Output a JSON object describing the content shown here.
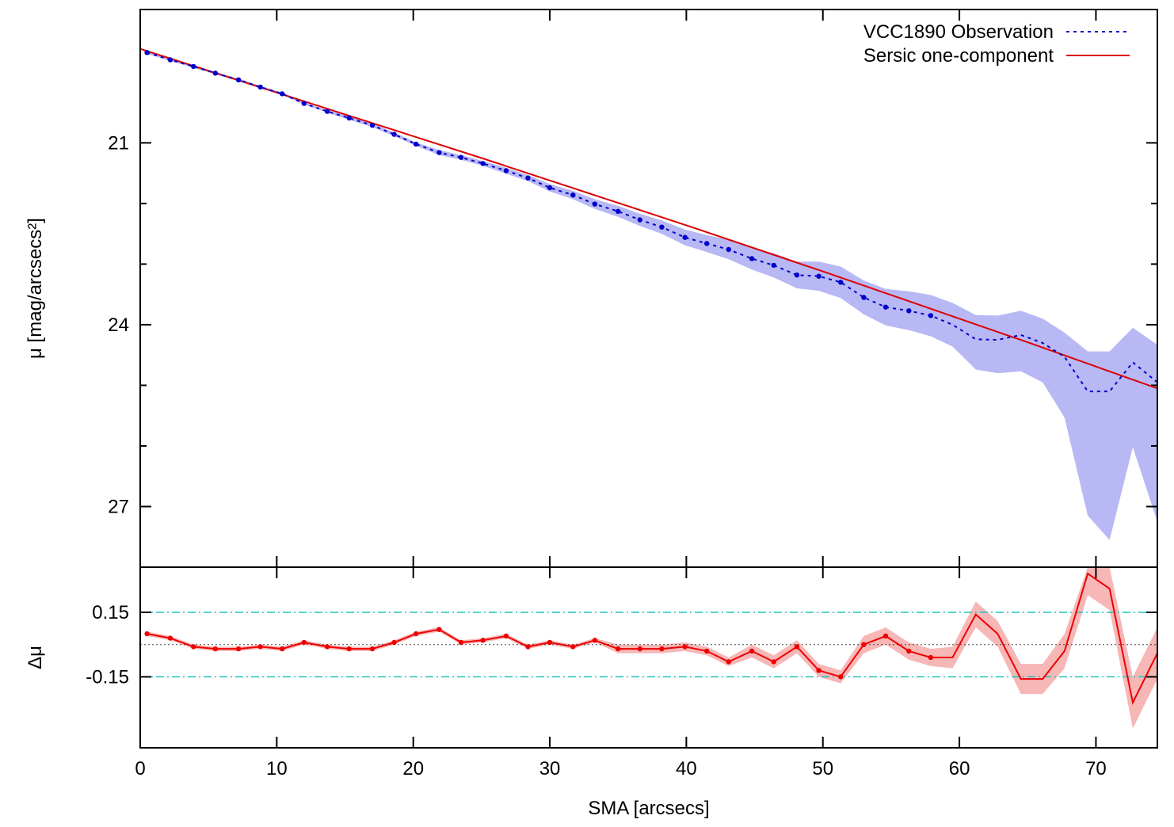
{
  "chart_data": [
    {
      "type": "line",
      "panel": "top",
      "ylabel": "μ [mag/arcsecs²]",
      "xlim": [
        0,
        74.5
      ],
      "ylim": [
        28,
        18.8
      ],
      "yticks_major": [
        21,
        24,
        27
      ],
      "yticks_minor": [
        22,
        23,
        25,
        26
      ],
      "legend": "top-right",
      "legend_entries": [
        "VCC1890 Observation",
        "Sersic one-component"
      ],
      "colors": {
        "observation": "#0000cc",
        "band": "#b8b8f5",
        "model": "#dd0000"
      },
      "observation": {
        "name": "VCC1890 Observation",
        "x": [
          0.5,
          2.2,
          3.9,
          5.5,
          7.2,
          8.8,
          10.4,
          12.0,
          13.7,
          15.3,
          17.0,
          18.6,
          20.2,
          21.9,
          23.5,
          25.1,
          26.8,
          28.4,
          30.0,
          31.7,
          33.3,
          35.0,
          36.6,
          38.2,
          39.9,
          41.5,
          43.1,
          44.8,
          46.4,
          48.1,
          49.7,
          51.3,
          53.0,
          54.6,
          56.3,
          57.9,
          59.5,
          61.2,
          62.8,
          64.5,
          66.1,
          67.7,
          69.4,
          71.0,
          72.7,
          74.5
        ],
        "y": [
          19.51,
          19.63,
          19.74,
          19.85,
          19.96,
          20.08,
          20.19,
          20.35,
          20.48,
          20.59,
          20.71,
          20.86,
          21.02,
          21.16,
          21.24,
          21.34,
          21.46,
          21.58,
          21.74,
          21.86,
          22.01,
          22.13,
          22.27,
          22.39,
          22.56,
          22.66,
          22.76,
          22.91,
          23.02,
          23.18,
          23.2,
          23.3,
          23.55,
          23.71,
          23.77,
          23.85,
          24.0,
          24.24,
          24.25,
          24.17,
          24.3,
          24.53,
          25.1,
          25.1,
          24.62,
          24.95
        ],
        "err_lo": [
          0.02,
          0.02,
          0.02,
          0.02,
          0.02,
          0.02,
          0.02,
          0.02,
          0.02,
          0.03,
          0.03,
          0.03,
          0.03,
          0.04,
          0.04,
          0.04,
          0.05,
          0.05,
          0.06,
          0.07,
          0.08,
          0.09,
          0.1,
          0.11,
          0.13,
          0.14,
          0.16,
          0.18,
          0.2,
          0.22,
          0.24,
          0.26,
          0.28,
          0.3,
          0.32,
          0.34,
          0.36,
          0.5,
          0.55,
          0.6,
          0.65,
          1.0,
          2.05,
          2.45,
          1.4,
          2.3
        ],
        "err_hi": [
          0.02,
          0.02,
          0.02,
          0.02,
          0.02,
          0.02,
          0.02,
          0.02,
          0.02,
          0.03,
          0.03,
          0.03,
          0.03,
          0.04,
          0.04,
          0.04,
          0.05,
          0.05,
          0.06,
          0.07,
          0.08,
          0.09,
          0.1,
          0.11,
          0.13,
          0.14,
          0.16,
          0.18,
          0.2,
          0.22,
          0.24,
          0.26,
          0.28,
          0.3,
          0.32,
          0.34,
          0.36,
          0.4,
          0.4,
          0.4,
          0.4,
          0.4,
          0.66,
          0.66,
          0.57,
          0.62
        ]
      },
      "model": {
        "name": "Sersic one-component",
        "x": [
          0,
          5,
          10,
          15,
          20,
          25,
          30,
          35,
          40,
          45,
          50,
          55,
          60,
          65,
          70,
          74.5
        ],
        "y": [
          19.45,
          19.81,
          20.17,
          20.53,
          20.89,
          21.25,
          21.62,
          21.99,
          22.36,
          22.74,
          23.12,
          23.51,
          23.9,
          24.29,
          24.69,
          25.05
        ]
      }
    },
    {
      "type": "line",
      "panel": "bottom",
      "xlabel": "SMA [arcsecs]",
      "ylabel": "Δμ",
      "xlim": [
        0,
        74.5
      ],
      "ylim": [
        -0.48,
        0.36
      ],
      "xticks": [
        0,
        10,
        20,
        30,
        40,
        50,
        60,
        70
      ],
      "yticks": [
        0.15,
        -0.15
      ],
      "reference_lines": {
        "zero": 0,
        "upper": 0.15,
        "lower": -0.15
      },
      "colors": {
        "residual": "#ee0000",
        "band": "#f7b7b7",
        "limit_lines": "#20c0c0",
        "zero_line": "#444444"
      },
      "residual": {
        "x": [
          0.5,
          2.2,
          3.9,
          5.5,
          7.2,
          8.8,
          10.4,
          12.0,
          13.7,
          15.3,
          17.0,
          18.6,
          20.2,
          21.9,
          23.5,
          25.1,
          26.8,
          28.4,
          30.0,
          31.7,
          33.3,
          35.0,
          36.6,
          38.2,
          39.9,
          41.5,
          43.1,
          44.8,
          46.4,
          48.1,
          49.7,
          51.3,
          53.0,
          54.6,
          56.3,
          57.9,
          59.5,
          61.2,
          62.8,
          64.5,
          66.1,
          67.7,
          69.4,
          71.0,
          72.7,
          74.5
        ],
        "y": [
          0.05,
          0.03,
          -0.01,
          -0.02,
          -0.02,
          -0.01,
          -0.02,
          0.01,
          -0.01,
          -0.02,
          -0.02,
          0.01,
          0.05,
          0.07,
          0.01,
          0.02,
          0.04,
          -0.01,
          0.01,
          -0.01,
          0.02,
          -0.02,
          -0.02,
          -0.02,
          -0.01,
          -0.03,
          -0.08,
          -0.03,
          -0.08,
          -0.01,
          -0.12,
          -0.15,
          0.0,
          0.04,
          -0.03,
          -0.06,
          -0.06,
          0.14,
          0.05,
          -0.16,
          -0.16,
          -0.03,
          0.33,
          0.26,
          -0.27,
          -0.04
        ],
        "band": [
          0.01,
          0.01,
          0.01,
          0.01,
          0.01,
          0.01,
          0.01,
          0.01,
          0.01,
          0.01,
          0.01,
          0.01,
          0.01,
          0.01,
          0.01,
          0.01,
          0.01,
          0.01,
          0.01,
          0.01,
          0.01,
          0.02,
          0.02,
          0.02,
          0.02,
          0.02,
          0.02,
          0.03,
          0.03,
          0.03,
          0.03,
          0.03,
          0.04,
          0.04,
          0.04,
          0.04,
          0.05,
          0.06,
          0.06,
          0.07,
          0.07,
          0.08,
          0.1,
          0.1,
          0.12,
          0.12
        ]
      }
    }
  ]
}
